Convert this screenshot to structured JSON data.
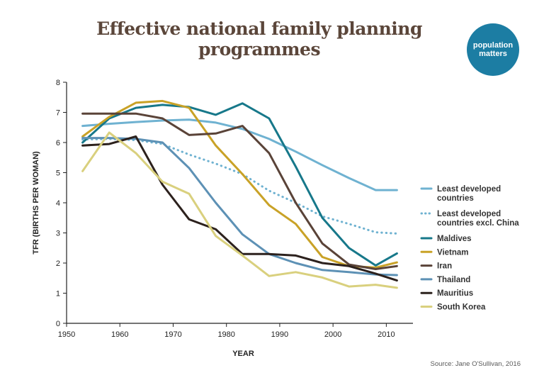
{
  "title": "Effective national family planning programmes",
  "logo": {
    "line1": "population",
    "line2": "matters"
  },
  "source": "Source: Jane O'Sullivan, 2016",
  "colors": {
    "title": "#5b463a",
    "logo_bg": "#1c7da3"
  },
  "chart_data": {
    "type": "line",
    "xlabel": "YEAR",
    "ylabel": "TFR (BIRTHS PER WOMAN)",
    "xlim": [
      1950,
      2015
    ],
    "ylim": [
      0,
      8
    ],
    "xticks": [
      1950,
      1960,
      1970,
      1980,
      1990,
      2000,
      2010
    ],
    "yticks": [
      0,
      1,
      2,
      3,
      4,
      5,
      6,
      7,
      8
    ],
    "grid": false,
    "legend_position": "right",
    "series": [
      {
        "name": "Least developed countries",
        "legend_lines": [
          "Least developed",
          "countries"
        ],
        "color": "#6fb2d1",
        "dash": "solid",
        "x": [
          1953,
          1958,
          1963,
          1968,
          1973,
          1978,
          1983,
          1988,
          1993,
          1998,
          2003,
          2008,
          2012
        ],
        "y": [
          6.55,
          6.62,
          6.68,
          6.73,
          6.76,
          6.66,
          6.45,
          6.12,
          5.7,
          5.25,
          4.82,
          4.42,
          4.42
        ]
      },
      {
        "name": "Least developed countries excl. China",
        "legend_lines": [
          "Least developed",
          "countries excl. China"
        ],
        "color": "#6fb2d1",
        "dash": "dotted",
        "x": [
          1953,
          1958,
          1963,
          1968,
          1973,
          1978,
          1983,
          1988,
          1993,
          1998,
          2003,
          2008,
          2012
        ],
        "y": [
          6.1,
          6.12,
          6.08,
          5.95,
          5.6,
          5.3,
          4.95,
          4.4,
          4.0,
          3.55,
          3.3,
          3.02,
          2.98
        ]
      },
      {
        "name": "Maldives",
        "legend_lines": [
          "Maldives"
        ],
        "color": "#17788a",
        "dash": "solid",
        "x": [
          1953,
          1958,
          1963,
          1968,
          1973,
          1978,
          1983,
          1988,
          1993,
          1998,
          2003,
          2008,
          2012
        ],
        "y": [
          6.0,
          6.8,
          7.15,
          7.25,
          7.18,
          6.92,
          7.3,
          6.8,
          5.2,
          3.5,
          2.5,
          1.92,
          2.32
        ]
      },
      {
        "name": "Vietnam",
        "legend_lines": [
          "Vietnam"
        ],
        "color": "#c9a227",
        "dash": "solid",
        "x": [
          1953,
          1958,
          1963,
          1968,
          1973,
          1978,
          1983,
          1988,
          1993,
          1998,
          2003,
          2008,
          2012
        ],
        "y": [
          6.2,
          6.85,
          7.32,
          7.38,
          7.15,
          5.9,
          4.95,
          3.92,
          3.3,
          2.2,
          1.9,
          1.85,
          2.02
        ]
      },
      {
        "name": "Iran",
        "legend_lines": [
          "Iran"
        ],
        "color": "#5a4338",
        "dash": "solid",
        "x": [
          1953,
          1958,
          1963,
          1968,
          1973,
          1978,
          1983,
          1988,
          1993,
          1998,
          2003,
          2008,
          2012
        ],
        "y": [
          6.96,
          6.96,
          6.96,
          6.8,
          6.25,
          6.3,
          6.55,
          5.65,
          4.0,
          2.65,
          1.95,
          1.8,
          1.9
        ]
      },
      {
        "name": "Thailand",
        "legend_lines": [
          "Thailand"
        ],
        "color": "#5d91b5",
        "dash": "solid",
        "x": [
          1953,
          1958,
          1963,
          1968,
          1973,
          1978,
          1983,
          1988,
          1993,
          1998,
          2003,
          2008,
          2012
        ],
        "y": [
          6.15,
          6.15,
          6.12,
          6.0,
          5.15,
          4.0,
          2.95,
          2.3,
          2.0,
          1.77,
          1.7,
          1.62,
          1.6
        ]
      },
      {
        "name": "Mauritius",
        "legend_lines": [
          "Mauritius"
        ],
        "color": "#2c211d",
        "dash": "solid",
        "x": [
          1953,
          1958,
          1963,
          1968,
          1973,
          1978,
          1983,
          1988,
          1993,
          1998,
          2003,
          2008,
          2012
        ],
        "y": [
          5.9,
          5.95,
          6.2,
          4.6,
          3.45,
          3.12,
          2.3,
          2.3,
          2.25,
          2.0,
          1.9,
          1.65,
          1.42
        ]
      },
      {
        "name": "South Korea",
        "legend_lines": [
          "South Korea"
        ],
        "color": "#d9d07e",
        "dash": "solid",
        "x": [
          1953,
          1958,
          1963,
          1968,
          1973,
          1978,
          1983,
          1988,
          1993,
          1998,
          2003,
          2008,
          2012
        ],
        "y": [
          5.05,
          6.33,
          5.65,
          4.7,
          4.3,
          2.9,
          2.25,
          1.57,
          1.7,
          1.52,
          1.22,
          1.28,
          1.18
        ]
      }
    ]
  }
}
